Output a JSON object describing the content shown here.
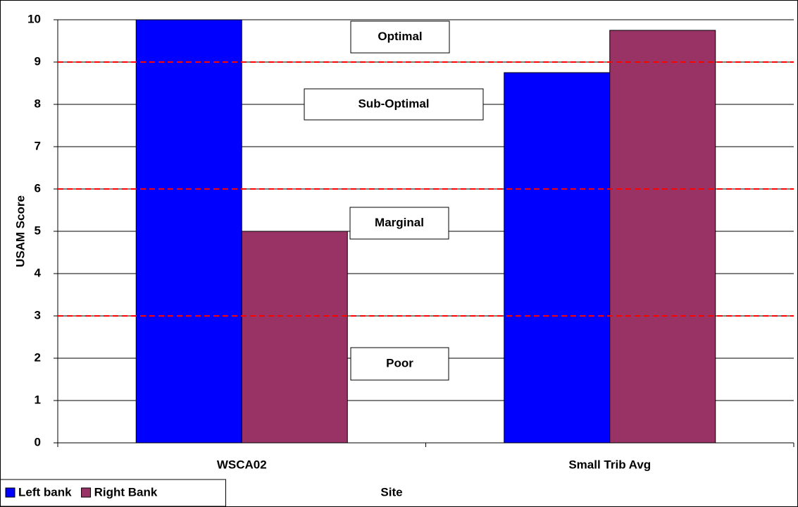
{
  "chart_data": {
    "type": "bar",
    "categories": [
      "WSCA02",
      "Small Trib Avg"
    ],
    "series": [
      {
        "name": "Left bank",
        "color": "#0000ff",
        "values": [
          10,
          8.75
        ]
      },
      {
        "name": "Right Bank",
        "color": "#993366",
        "values": [
          5,
          9.75
        ]
      }
    ],
    "ylim": [
      0,
      10
    ],
    "yticks": [
      0,
      1,
      2,
      3,
      4,
      5,
      6,
      7,
      8,
      9,
      10
    ],
    "grid": true,
    "xlabel": "Site",
    "ylabel": "USAM Score",
    "thresholds": [
      3,
      6,
      9
    ],
    "threshold_color": "#ff0000",
    "annotations": [
      "Optimal",
      "Sub-Optimal",
      "Marginal",
      "Poor"
    ],
    "legend": "bottom-left"
  }
}
